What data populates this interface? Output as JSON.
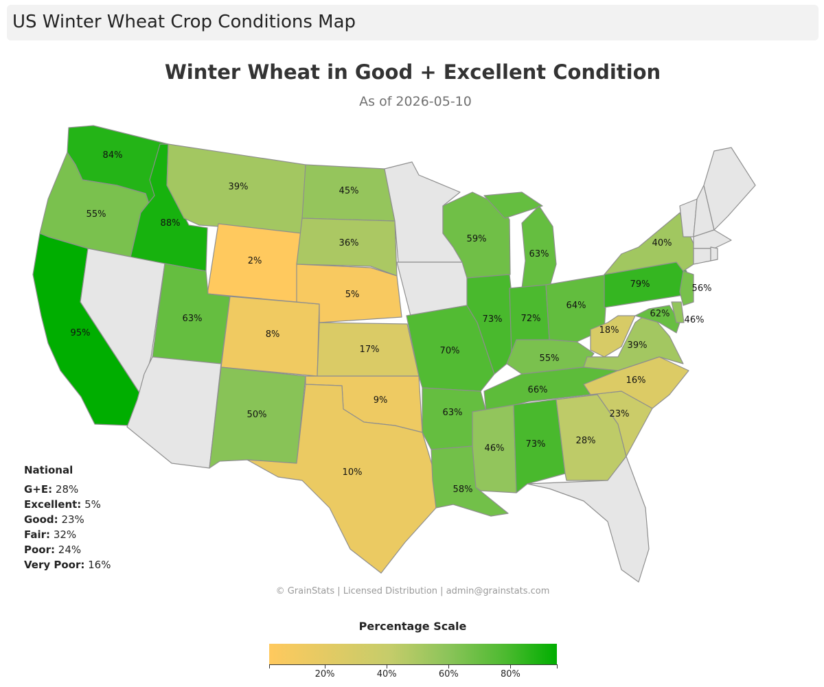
{
  "header": {
    "title": "US Winter Wheat Crop Conditions Map"
  },
  "map": {
    "title": "Winter Wheat in Good + Excellent Condition",
    "subtitle": "As of 2026-05-10",
    "no_data_color": "#e6e6e6",
    "border_color": "#8e8e8e",
    "states": [
      {
        "state": "WA",
        "value": 84
      },
      {
        "state": "OR",
        "value": 55
      },
      {
        "state": "CA",
        "value": 95
      },
      {
        "state": "ID",
        "value": 88
      },
      {
        "state": "MT",
        "value": 39
      },
      {
        "state": "WY",
        "value": 2
      },
      {
        "state": "UT",
        "value": 63
      },
      {
        "state": "CO",
        "value": 8
      },
      {
        "state": "NM",
        "value": 50
      },
      {
        "state": "ND",
        "value": 45
      },
      {
        "state": "SD",
        "value": 36
      },
      {
        "state": "NE",
        "value": 5
      },
      {
        "state": "KS",
        "value": 17
      },
      {
        "state": "OK",
        "value": 9
      },
      {
        "state": "TX",
        "value": 10
      },
      {
        "state": "MO",
        "value": 70
      },
      {
        "state": "AR",
        "value": 63
      },
      {
        "state": "LA",
        "value": 58
      },
      {
        "state": "WI",
        "value": 59
      },
      {
        "state": "IL",
        "value": 73
      },
      {
        "state": "MI",
        "value": 63
      },
      {
        "state": "IN",
        "value": 72
      },
      {
        "state": "OH",
        "value": 64
      },
      {
        "state": "KY",
        "value": 55
      },
      {
        "state": "TN",
        "value": 66
      },
      {
        "state": "MS",
        "value": 46
      },
      {
        "state": "AL",
        "value": 73
      },
      {
        "state": "GA",
        "value": 28
      },
      {
        "state": "SC",
        "value": 23
      },
      {
        "state": "NC",
        "value": 16
      },
      {
        "state": "VA",
        "value": 39
      },
      {
        "state": "WV",
        "value": 18
      },
      {
        "state": "PA",
        "value": 79
      },
      {
        "state": "NY",
        "value": 40
      },
      {
        "state": "NJ",
        "value": 56
      },
      {
        "state": "MD",
        "value": 62
      },
      {
        "state": "DE",
        "value": 46
      }
    ],
    "labels": {
      "WA": "84%",
      "OR": "55%",
      "CA": "95%",
      "ID": "88%",
      "MT": "39%",
      "WY": "2%",
      "UT": "63%",
      "CO": "8%",
      "NM": "50%",
      "ND": "45%",
      "SD": "36%",
      "NE": "5%",
      "KS": "17%",
      "OK": "9%",
      "TX": "10%",
      "MO": "70%",
      "AR": "63%",
      "LA": "58%",
      "WI": "59%",
      "IL": "73%",
      "MI": "63%",
      "IN": "72%",
      "OH": "64%",
      "KY": "55%",
      "TN": "66%",
      "MS": "46%",
      "AL": "73%",
      "GA": "28%",
      "SC": "23%",
      "NC": "16%",
      "VA": "39%",
      "WV": "18%",
      "PA": "79%",
      "NY": "40%",
      "NJ": "56%",
      "MD": "62%",
      "DE": "46%"
    }
  },
  "national": {
    "title": "National",
    "rows": [
      {
        "label": "G+E:",
        "value": "28%"
      },
      {
        "label": "Excellent:",
        "value": "5%"
      },
      {
        "label": "Good:",
        "value": "23%"
      },
      {
        "label": "Fair:",
        "value": "32%"
      },
      {
        "label": "Poor:",
        "value": "24%"
      },
      {
        "label": "Very Poor:",
        "value": "16%"
      }
    ]
  },
  "footer": {
    "text": "© GrainStats | Licensed Distribution | admin@grainstats.com"
  },
  "scale": {
    "title": "Percentage Scale",
    "min": 2,
    "max": 95,
    "ticks": [
      {
        "value": 20,
        "label": "20%"
      },
      {
        "value": 40,
        "label": "40%"
      },
      {
        "value": 60,
        "label": "60%"
      },
      {
        "value": 80,
        "label": "80%"
      }
    ],
    "colors": [
      "#ffc95e",
      "#c5cc6a",
      "#8cc45a",
      "#4dba30",
      "#00ae00"
    ]
  }
}
